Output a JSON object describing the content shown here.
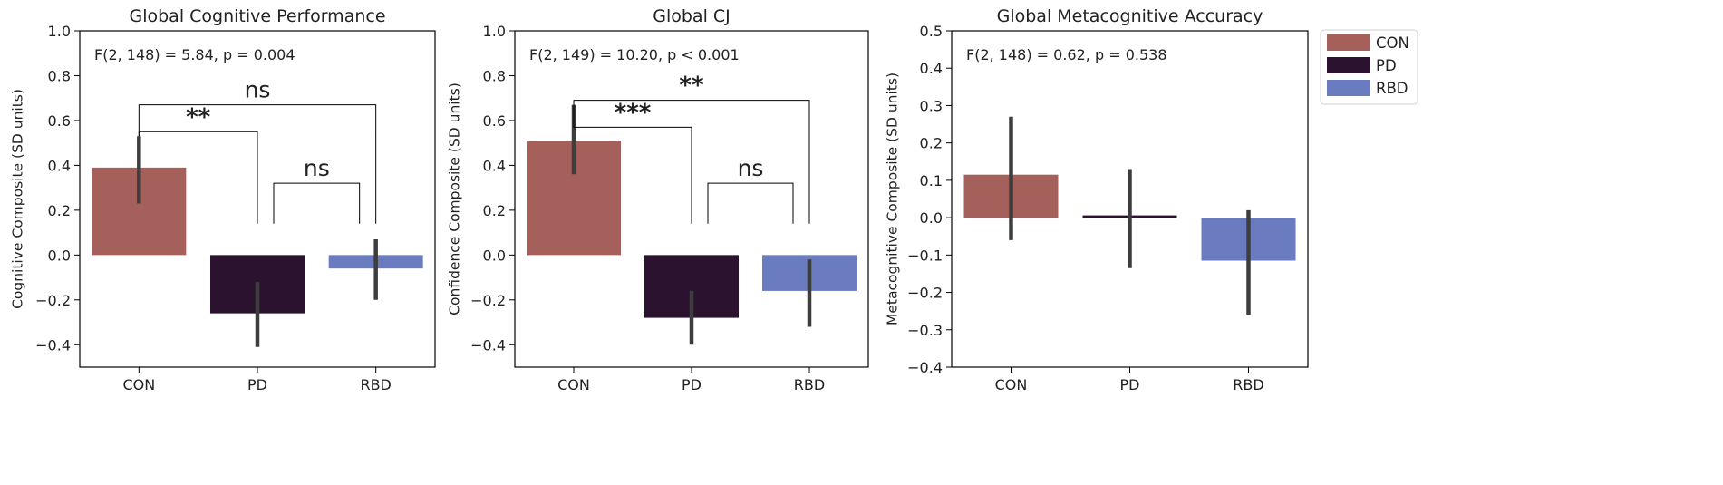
{
  "colors": {
    "CON": "#a5605b",
    "PD": "#2b1330",
    "RBD": "#6a7bbf",
    "error_bar": "#3d3d3d"
  },
  "legend": {
    "placement": "outside-right-top",
    "entries": [
      {
        "label": "CON",
        "color": "#a5605b"
      },
      {
        "label": "PD",
        "color": "#2b1330"
      },
      {
        "label": "RBD",
        "color": "#6a7bbf"
      }
    ]
  },
  "chart_data": [
    {
      "type": "bar",
      "title": "Global Cognitive Performance",
      "ylabel": "Cognitive Composite (SD units)",
      "xlabel": "",
      "categories": [
        "CON",
        "PD",
        "RBD"
      ],
      "values": [
        0.39,
        -0.26,
        -0.06
      ],
      "error_low": [
        0.23,
        -0.41,
        -0.2
      ],
      "error_high": [
        0.53,
        -0.12,
        0.07
      ],
      "ylim": [
        -0.5,
        1.0
      ],
      "yticks": [
        -0.4,
        -0.2,
        0.0,
        0.2,
        0.4,
        0.6,
        0.8,
        1.0
      ],
      "ytick_labels": [
        "−0.4",
        "−0.2",
        "0.0",
        "0.2",
        "0.4",
        "0.6",
        "0.8",
        "1.0"
      ],
      "grid": false,
      "annotation": "F(2, 148) = 5.84, p = 0.004",
      "significance": [
        {
          "from": 0,
          "to": 1,
          "label": "**",
          "y": 0.55
        },
        {
          "from": 0,
          "to": 2,
          "label": "ns",
          "y": 0.67
        },
        {
          "from": 1,
          "to": 2,
          "label": "ns",
          "y": 0.32
        }
      ]
    },
    {
      "type": "bar",
      "title": "Global CJ",
      "ylabel": "Confidence Composite (SD units)",
      "xlabel": "",
      "categories": [
        "CON",
        "PD",
        "RBD"
      ],
      "values": [
        0.51,
        -0.28,
        -0.16
      ],
      "error_low": [
        0.36,
        -0.4,
        -0.32
      ],
      "error_high": [
        0.67,
        -0.16,
        -0.02
      ],
      "ylim": [
        -0.5,
        1.0
      ],
      "yticks": [
        -0.4,
        -0.2,
        0.0,
        0.2,
        0.4,
        0.6,
        0.8,
        1.0
      ],
      "ytick_labels": [
        "−0.4",
        "−0.2",
        "0.0",
        "0.2",
        "0.4",
        "0.6",
        "0.8",
        "1.0"
      ],
      "grid": false,
      "annotation": "F(2, 149) = 10.20, p < 0.001",
      "significance": [
        {
          "from": 0,
          "to": 1,
          "label": "***",
          "y": 0.57
        },
        {
          "from": 0,
          "to": 2,
          "label": "**",
          "y": 0.69
        },
        {
          "from": 1,
          "to": 2,
          "label": "ns",
          "y": 0.32
        }
      ]
    },
    {
      "type": "bar",
      "title": "Global Metacognitive Accuracy",
      "ylabel": "Metacognitive Composite (SD units)",
      "xlabel": "",
      "categories": [
        "CON",
        "PD",
        "RBD"
      ],
      "values": [
        0.115,
        0.005,
        -0.115
      ],
      "error_low": [
        -0.06,
        -0.135,
        -0.26
      ],
      "error_high": [
        0.27,
        0.13,
        0.02
      ],
      "ylim": [
        -0.4,
        0.5
      ],
      "yticks": [
        -0.4,
        -0.3,
        -0.2,
        -0.1,
        0.0,
        0.1,
        0.2,
        0.3,
        0.4,
        0.5
      ],
      "ytick_labels": [
        "−0.4",
        "−0.3",
        "−0.2",
        "−0.1",
        "0.0",
        "0.1",
        "0.2",
        "0.3",
        "0.4",
        "0.5"
      ],
      "grid": false,
      "annotation": "F(2, 148) = 0.62, p = 0.538",
      "significance": []
    }
  ]
}
